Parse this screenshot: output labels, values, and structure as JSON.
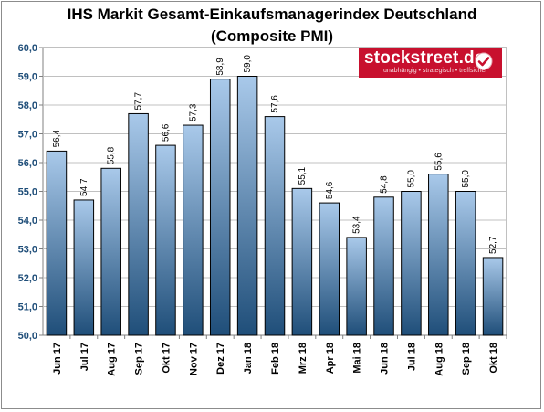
{
  "chart_data": {
    "type": "bar",
    "title": "IHS Markit Gesamt-Einkaufsmanagerindex Deutschland",
    "subtitle": "(Composite PMI)",
    "categories": [
      "Jun 17",
      "Jul 17",
      "Aug 17",
      "Sep 17",
      "Okt 17",
      "Nov 17",
      "Dez 17",
      "Jan 18",
      "Feb 18",
      "Mrz 18",
      "Apr 18",
      "Mai 18",
      "Jun 18",
      "Jul 18",
      "Aug 18",
      "Sep 18",
      "Okt 18"
    ],
    "values": [
      56.4,
      54.7,
      55.8,
      57.7,
      56.6,
      57.3,
      58.9,
      59.0,
      57.6,
      55.1,
      54.6,
      53.4,
      54.8,
      55.0,
      55.6,
      55.0,
      52.7
    ],
    "value_labels": [
      "56,4",
      "54,7",
      "55,8",
      "57,7",
      "56,6",
      "57,3",
      "58,9",
      "59,0",
      "57,6",
      "55,1",
      "54,6",
      "53,4",
      "54,8",
      "55,0",
      "55,6",
      "55,0",
      "52,7"
    ],
    "ylim": [
      50,
      60
    ],
    "yticks": [
      "50,0",
      "51,0",
      "52,0",
      "53,0",
      "54,0",
      "55,0",
      "56,0",
      "57,0",
      "58,0",
      "59,0",
      "60,0"
    ],
    "grid": true,
    "legend": "none",
    "bar_gradient": [
      "#a9c9ea",
      "#1f4e79"
    ]
  },
  "logo": {
    "name": "stockstreet.de",
    "slogan": "unabhängig • strategisch • treffsicher",
    "color": "#c8102e"
  }
}
